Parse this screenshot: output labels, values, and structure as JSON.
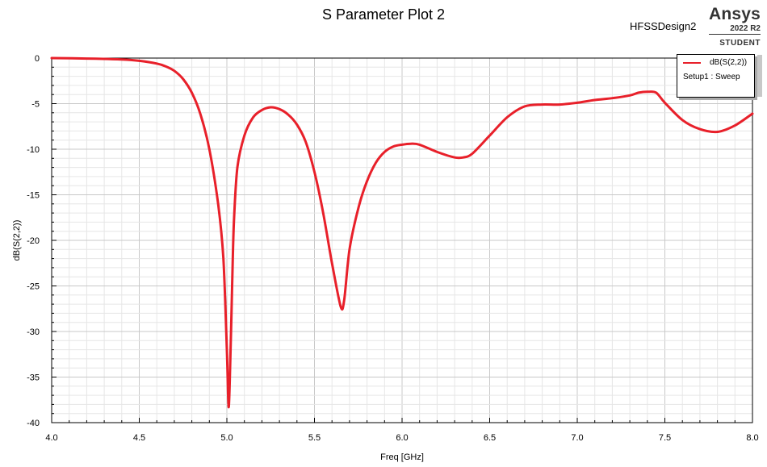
{
  "header": {
    "title": "S Parameter Plot 2",
    "design_name": "HFSSDesign2",
    "brand": "Ansys",
    "version": "2022 R2",
    "edition": "STUDENT"
  },
  "legend": {
    "trace_label": "dB(S(2,2))",
    "setup_label": "Setup1 : Sweep"
  },
  "colors": {
    "trace": "#e8202a",
    "grid_major": "#c8c8c8",
    "grid_minor": "#e6e6e6"
  },
  "chart_data": {
    "type": "line",
    "xlabel": "Freq [GHz]",
    "ylabel": "dB(S(2,2))",
    "xlim": [
      4.0,
      8.0
    ],
    "ylim": [
      -40,
      0
    ],
    "xticks": [
      "4.0",
      "4.5",
      "5.0",
      "5.5",
      "6.0",
      "6.5",
      "7.0",
      "7.5",
      "8.0"
    ],
    "yticks": [
      "0",
      "-5",
      "-10",
      "-15",
      "-20",
      "-25",
      "-30",
      "-35",
      "-40"
    ],
    "grid": true,
    "legend_position": "top-right",
    "series": [
      {
        "name": "dB(S(2,2))",
        "x": [
          4.0,
          4.2,
          4.4,
          4.5,
          4.6,
          4.65,
          4.7,
          4.75,
          4.8,
          4.85,
          4.9,
          4.95,
          4.98,
          5.0,
          5.01,
          5.02,
          5.03,
          5.04,
          5.06,
          5.1,
          5.15,
          5.2,
          5.25,
          5.3,
          5.35,
          5.4,
          5.45,
          5.5,
          5.55,
          5.6,
          5.65,
          5.67,
          5.7,
          5.75,
          5.8,
          5.85,
          5.9,
          5.95,
          6.0,
          6.05,
          6.1,
          6.2,
          6.3,
          6.35,
          6.4,
          6.5,
          6.6,
          6.7,
          6.8,
          6.9,
          7.0,
          7.1,
          7.2,
          7.3,
          7.35,
          7.4,
          7.45,
          7.5,
          7.6,
          7.7,
          7.8,
          7.9,
          8.0
        ],
        "values": [
          0.0,
          -0.05,
          -0.15,
          -0.3,
          -0.6,
          -0.9,
          -1.4,
          -2.3,
          -3.8,
          -6.2,
          -10.0,
          -16.0,
          -22.0,
          -32.0,
          -38.3,
          -33.0,
          -25.0,
          -18.0,
          -12.0,
          -8.5,
          -6.5,
          -5.7,
          -5.4,
          -5.6,
          -6.2,
          -7.3,
          -9.2,
          -12.5,
          -17.0,
          -22.5,
          -27.3,
          -26.5,
          -21.0,
          -16.5,
          -13.5,
          -11.5,
          -10.3,
          -9.7,
          -9.5,
          -9.4,
          -9.5,
          -10.3,
          -10.9,
          -10.9,
          -10.5,
          -8.5,
          -6.5,
          -5.3,
          -5.1,
          -5.1,
          -4.9,
          -4.6,
          -4.4,
          -4.1,
          -3.8,
          -3.7,
          -3.8,
          -4.9,
          -6.8,
          -7.8,
          -8.1,
          -7.4,
          -6.1
        ]
      }
    ]
  }
}
